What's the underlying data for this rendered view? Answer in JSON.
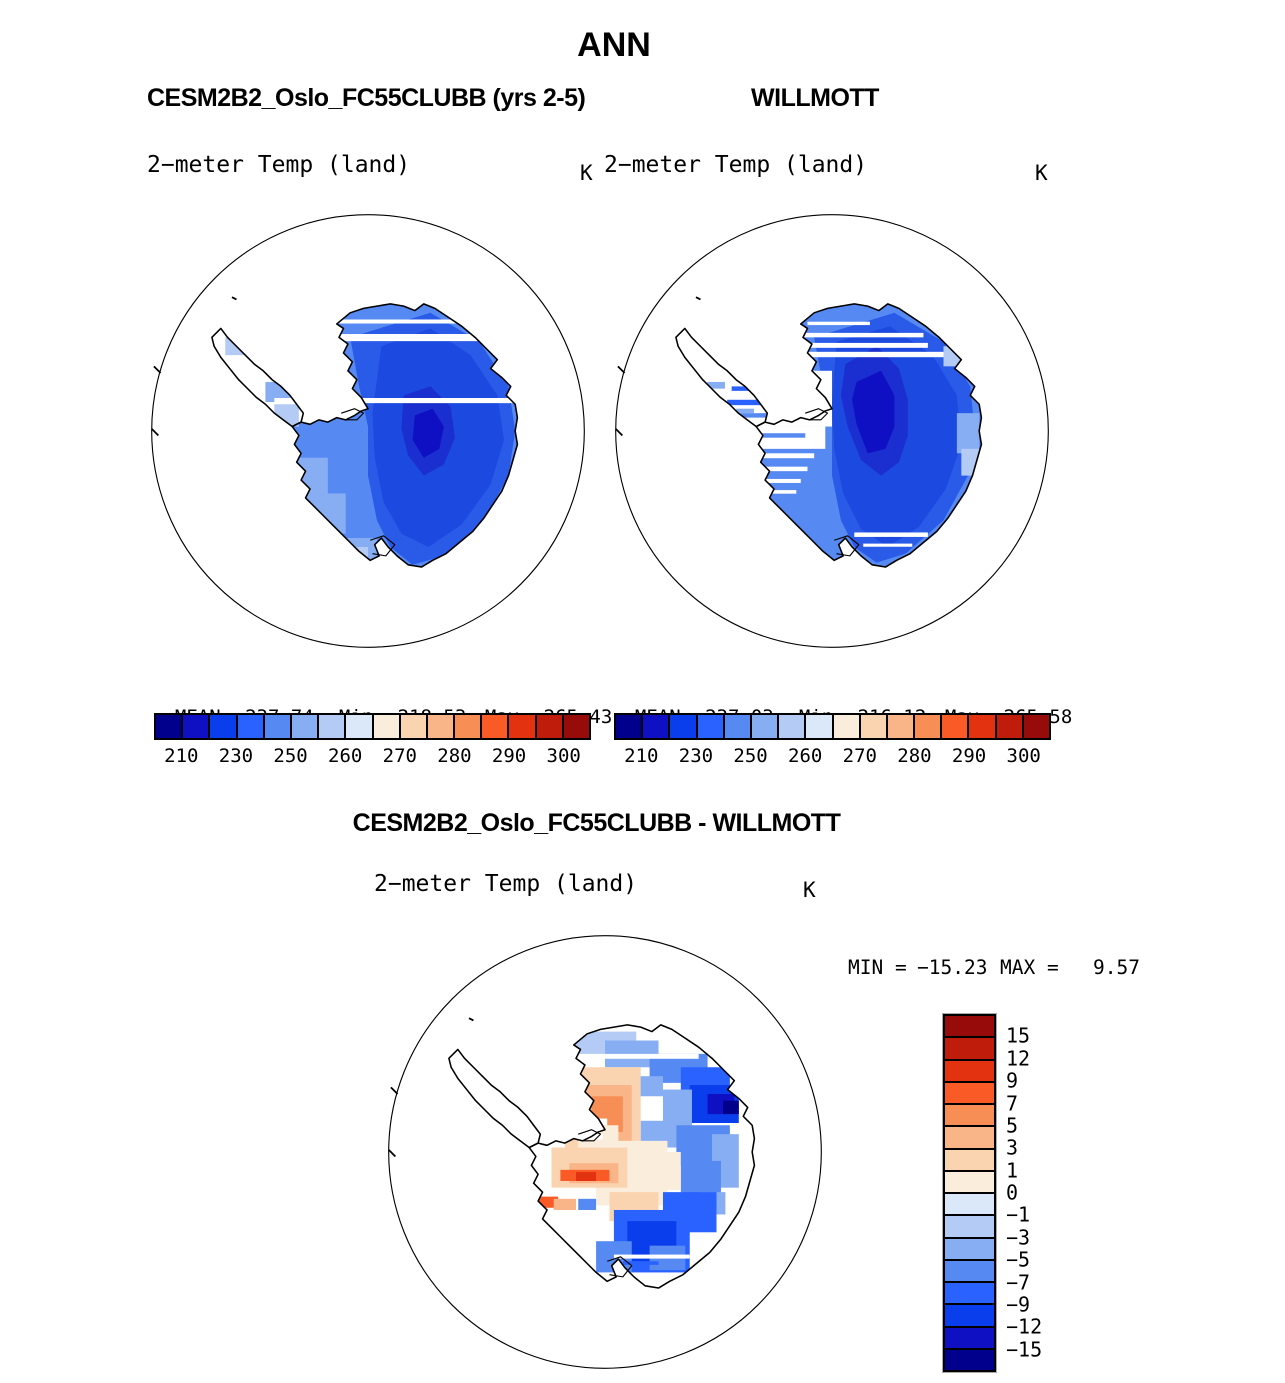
{
  "header": {
    "title": "ANN"
  },
  "palette": {
    "b1": "#00008C",
    "b2": "#0F0FC3",
    "b3": "#0A3DEB",
    "b4": "#2962FF",
    "b5": "#568AF2",
    "b6": "#87ADF2",
    "b7": "#B3CBF5",
    "b8": "#DBE8F9",
    "r1": "#FBEDDC",
    "r2": "#FAD3B0",
    "r3": "#F9B588",
    "r4": "#F78E55",
    "r5": "#F95A26",
    "r6": "#E33210",
    "r7": "#C01C0C",
    "r8": "#970B0B",
    "kidney": "#1B2FD0",
    "interior": "#1C49E0",
    "base": "#2A5BE8",
    "outline": "#000000",
    "white": "#FFFFFF"
  },
  "panels": [
    {
      "title": "CESM2B2_Oslo_FC55CLUBB (yrs 2-5)",
      "subtitle": "2−meter Temp (land)",
      "units": "K",
      "stats": {
        "mean_label": "MEAN=",
        "mean": "237.74",
        "min_label": "Min=",
        "min": "218.53",
        "max_label": "Max=",
        "max": "265.43"
      },
      "colorbar": {
        "colors": [
          "#00008C",
          "#0F0FC3",
          "#0A3DEB",
          "#2962FF",
          "#568AF2",
          "#87ADF2",
          "#B3CBF5",
          "#DBE8F9",
          "#FBEDDC",
          "#FAD3B0",
          "#F9B588",
          "#F78E55",
          "#F95A26",
          "#E33210",
          "#C01C0C",
          "#970B0B"
        ],
        "ticks": [
          "210",
          "230",
          "250",
          "260",
          "270",
          "280",
          "290",
          "300"
        ]
      }
    },
    {
      "title": "WILLMOTT",
      "subtitle": "2−meter Temp (land)",
      "units": "K",
      "stats": {
        "mean_label": "MEAN=",
        "mean": "237.03",
        "min_label": "Min=",
        "min": "216.12",
        "max_label": "Max=",
        "max": "265.58"
      },
      "colorbar": {
        "colors": [
          "#00008C",
          "#0F0FC3",
          "#0A3DEB",
          "#2962FF",
          "#568AF2",
          "#87ADF2",
          "#B3CBF5",
          "#DBE8F9",
          "#FBEDDC",
          "#FAD3B0",
          "#F9B588",
          "#F78E55",
          "#F95A26",
          "#E33210",
          "#C01C0C",
          "#970B0B"
        ],
        "ticks": [
          "210",
          "230",
          "250",
          "260",
          "270",
          "280",
          "290",
          "300"
        ]
      }
    }
  ],
  "diff": {
    "title": "CESM2B2_Oslo_FC55CLUBB - WILLMOTT",
    "subtitle": "2−meter Temp (land)",
    "units": "K",
    "min_label": "MIN =",
    "min": "−15.23",
    "max_label": "MAX =",
    "max": "9.57",
    "colorbar": {
      "colors": [
        "#970B0B",
        "#C01C0C",
        "#E33210",
        "#F95A26",
        "#F78E55",
        "#F9B588",
        "#FAD3B0",
        "#FBEDDC",
        "#DBE8F9",
        "#B3CBF5",
        "#87ADF2",
        "#568AF2",
        "#2962FF",
        "#0A3DEB",
        "#0F0FC3",
        "#00008C"
      ],
      "labels": [
        "15",
        "12",
        "9",
        "7",
        "5",
        "3",
        "1",
        "0",
        "−1",
        "−3",
        "−5",
        "−7",
        "−9",
        "−12",
        "−15"
      ]
    }
  },
  "chart_data": [
    {
      "type": "heatmap",
      "title": "CESM2B2_Oslo_FC55CLUBB (yrs 2-5)",
      "variable": "2-meter Temp (land)",
      "units": "K",
      "projection": "south-polar-stereographic",
      "region": "Antarctica",
      "stats": {
        "mean": 237.74,
        "min": 218.53,
        "max": 265.43
      },
      "colorbar_ticks": [
        210,
        230,
        250,
        260,
        270,
        280,
        290,
        300
      ],
      "colorbar_segments": 16,
      "legend_position": "bottom"
    },
    {
      "type": "heatmap",
      "title": "WILLMOTT",
      "variable": "2-meter Temp (land)",
      "units": "K",
      "projection": "south-polar-stereographic",
      "region": "Antarctica",
      "stats": {
        "mean": 237.03,
        "min": 216.12,
        "max": 265.58
      },
      "colorbar_ticks": [
        210,
        230,
        250,
        260,
        270,
        280,
        290,
        300
      ],
      "colorbar_segments": 16,
      "legend_position": "bottom"
    },
    {
      "type": "heatmap",
      "title": "CESM2B2_Oslo_FC55CLUBB - WILLMOTT",
      "variable": "2-meter Temp (land)",
      "units": "K",
      "projection": "south-polar-stereographic",
      "region": "Antarctica",
      "stats": {
        "min": -15.23,
        "max": 9.57
      },
      "colorbar_levels": [
        15,
        12,
        9,
        7,
        5,
        3,
        1,
        0,
        -1,
        -3,
        -5,
        -7,
        -9,
        -12,
        -15
      ],
      "colorbar_segments": 16,
      "legend_position": "right"
    }
  ]
}
